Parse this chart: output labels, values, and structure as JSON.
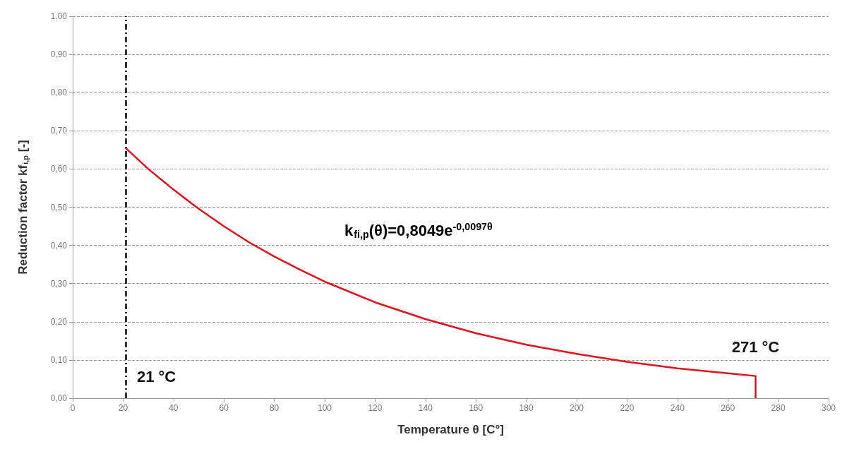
{
  "chart_data": {
    "type": "line",
    "xlabel": "Temperature θ [C°]",
    "ylabel": "Reduction factor kf$_{i,p}$ [-]",
    "x": [
      21,
      30,
      40,
      50,
      60,
      70,
      80,
      90,
      100,
      120,
      140,
      160,
      180,
      200,
      220,
      240,
      260,
      271,
      271
    ],
    "series": [
      {
        "color": "#e3101b",
        "values": [
          0.655,
          0.6,
          0.546,
          0.496,
          0.45,
          0.408,
          0.371,
          0.337,
          0.305,
          0.251,
          0.207,
          0.17,
          0.14,
          0.116,
          0.095,
          0.078,
          0.065,
          0.058,
          0
        ]
      }
    ],
    "xlim": [
      0,
      300
    ],
    "xticks": [
      0,
      20,
      40,
      60,
      80,
      100,
      120,
      140,
      160,
      180,
      200,
      220,
      240,
      260,
      280,
      300
    ],
    "ylim": [
      0,
      1
    ],
    "yticks": [
      {
        "value": 0,
        "label": "0,00"
      },
      {
        "value": 0.1,
        "label": "0,10"
      },
      {
        "value": 0.2,
        "label": "0,20"
      },
      {
        "value": 0.3,
        "label": "0,30"
      },
      {
        "value": 0.4,
        "label": "0,40"
      },
      {
        "value": 0.5,
        "label": "0,50"
      },
      {
        "value": 0.6,
        "label": "0,60"
      },
      {
        "value": 0.7,
        "label": "0,70"
      },
      {
        "value": 0.8,
        "label": "0,80"
      },
      {
        "value": 0.9,
        "label": "0,90"
      },
      {
        "value": 1,
        "label": "1,00"
      }
    ],
    "grid": "y",
    "marker": "none",
    "line_style": "solid",
    "ref_lines": [
      {
        "axis": "x",
        "value": 21,
        "label": "21 °C",
        "color": "#000000",
        "line_style": "dashdot"
      }
    ],
    "annotations": [
      "k$_{fi,p}$(θ)=0,8049e$^{-0,0097θ}$",
      {
        "text": "271 °C",
        "x": 271,
        "y": 0.058
      }
    ]
  }
}
